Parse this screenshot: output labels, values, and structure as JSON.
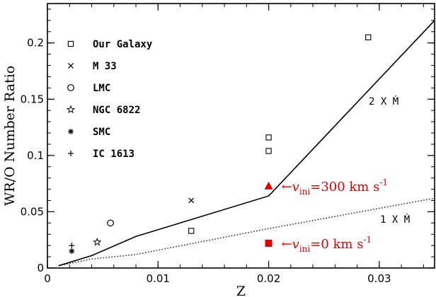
{
  "chart_data": {
    "type": "scatter",
    "xlabel": "Z",
    "ylabel": "WR/O Number Ratio",
    "xlim": [
      0,
      0.035
    ],
    "ylim": [
      0,
      0.235
    ],
    "x_ticks": [
      0,
      0.01,
      0.02,
      0.03
    ],
    "x_tick_labels": [
      "0",
      "0.01",
      "0.02",
      "0.03"
    ],
    "y_ticks": [
      0,
      0.05,
      0.1,
      0.15,
      0.2
    ],
    "y_tick_labels": [
      "0",
      "0.05",
      "0.1",
      "0.15",
      "0.2"
    ],
    "grid": false,
    "legend_position": "top-left",
    "series": [
      {
        "name": "Our Galaxy",
        "marker": "square-open",
        "points": [
          [
            0.013,
            0.033
          ],
          [
            0.02,
            0.104
          ],
          [
            0.02,
            0.116
          ],
          [
            0.029,
            0.205
          ]
        ]
      },
      {
        "name": "M 33",
        "marker": "cross",
        "points": [
          [
            0.013,
            0.06
          ]
        ]
      },
      {
        "name": "LMC",
        "marker": "circle-open",
        "points": [
          [
            0.0057,
            0.04
          ]
        ]
      },
      {
        "name": "NGC 6822",
        "marker": "star-open",
        "points": [
          [
            0.0045,
            0.023
          ]
        ]
      },
      {
        "name": "SMC",
        "marker": "asterisk",
        "points": [
          [
            0.0022,
            0.015
          ]
        ]
      },
      {
        "name": "IC 1613",
        "marker": "plus",
        "points": [
          [
            0.0022,
            0.02
          ]
        ]
      }
    ],
    "model_lines": [
      {
        "label": "2 X Ṁ",
        "style": "solid",
        "points": [
          [
            0.001,
            0.002
          ],
          [
            0.004,
            0.011
          ],
          [
            0.008,
            0.028
          ],
          [
            0.02,
            0.064
          ],
          [
            0.035,
            0.22
          ]
        ]
      },
      {
        "label": "1 X Ṁ",
        "style": "dotted",
        "points": [
          [
            0.001,
            0.002
          ],
          [
            0.004,
            0.008
          ],
          [
            0.008,
            0.012
          ],
          [
            0.02,
            0.035
          ],
          [
            0.035,
            0.062
          ]
        ]
      }
    ],
    "highlight_points": [
      {
        "marker": "triangle-filled",
        "color": "#e00000",
        "x": 0.02,
        "y": 0.073,
        "label_arrow": "←",
        "label_var": "v",
        "label_sub": "ini",
        "label_rest": "=300 km s",
        "label_sup": "-1"
      },
      {
        "marker": "square-filled",
        "color": "#e00000",
        "x": 0.02,
        "y": 0.022,
        "label_arrow": "←",
        "label_var": "v",
        "label_sub": "ini",
        "label_rest": "=0 km s",
        "label_sup": "-1"
      }
    ]
  }
}
